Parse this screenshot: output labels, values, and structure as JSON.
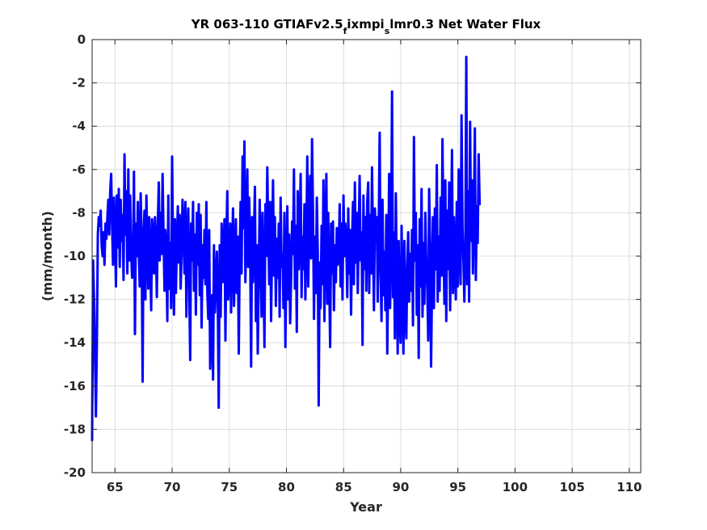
{
  "chart_data": {
    "type": "line",
    "title": {
      "prefix": "YR 063-110 GTIAFv2.5",
      "sub1": "f",
      "mid": "ixmpi",
      "sub2": "s",
      "suffix": "lmr0.3 Net Water Flux"
    },
    "xlabel": "Year",
    "ylabel": "(mm/month)",
    "xlim": [
      63,
      111
    ],
    "ylim": [
      -20,
      0
    ],
    "xticks": [
      65,
      70,
      75,
      80,
      85,
      90,
      95,
      100,
      105,
      110
    ],
    "yticks": [
      -20,
      -18,
      -16,
      -14,
      -12,
      -10,
      -8,
      -6,
      -4,
      -2,
      0
    ],
    "grid": true,
    "series": [
      {
        "color": "#0000ff",
        "x_start": 63.0,
        "x_step": 0.0833,
        "note_monthly": true,
        "y": [
          -18.5,
          -10.2,
          -12.0,
          -14.5,
          -17.4,
          -14.0,
          -9.0,
          -8.2,
          -8.6,
          -7.9,
          -9.5,
          -10.0,
          -8.9,
          -10.4,
          -8.5,
          -9.2,
          -8.2,
          -7.4,
          -9.0,
          -7.0,
          -6.2,
          -8.6,
          -10.4,
          -7.3,
          -8.8,
          -11.4,
          -7.2,
          -9.6,
          -6.9,
          -10.5,
          -7.4,
          -9.3,
          -8.1,
          -11.1,
          -5.3,
          -9.0,
          -7.0,
          -10.8,
          -6.0,
          -10.2,
          -7.2,
          -9.8,
          -11.0,
          -10.2,
          -6.1,
          -13.6,
          -8.5,
          -10.0,
          -7.5,
          -9.7,
          -11.4,
          -7.1,
          -9.5,
          -15.8,
          -9.0,
          -7.9,
          -12.0,
          -7.2,
          -9.4,
          -11.5,
          -8.2,
          -10.1,
          -12.5,
          -8.3,
          -9.0,
          -10.8,
          -8.2,
          -9.4,
          -11.9,
          -8.5,
          -6.6,
          -10.2,
          -8.0,
          -9.9,
          -6.2,
          -9.0,
          -11.6,
          -8.8,
          -10.0,
          -13.0,
          -7.2,
          -11.5,
          -9.4,
          -12.4,
          -5.4,
          -10.0,
          -12.7,
          -8.3,
          -11.7,
          -9.5,
          -7.7,
          -10.3,
          -8.1,
          -11.5,
          -9.8,
          -7.4,
          -8.8,
          -10.8,
          -7.5,
          -12.8,
          -9.0,
          -7.8,
          -11.4,
          -14.8,
          -8.5,
          -10.2,
          -7.5,
          -11.6,
          -9.0,
          -12.7,
          -8.0,
          -10.4,
          -7.6,
          -11.8,
          -8.1,
          -13.3,
          -9.5,
          -11.0,
          -8.8,
          -11.3,
          -7.5,
          -11.7,
          -12.9,
          -8.8,
          -15.2,
          -13.6,
          -11.8,
          -15.7,
          -9.5,
          -12.6,
          -11.3,
          -9.8,
          -11.9,
          -17.0,
          -9.5,
          -12.8,
          -8.5,
          -11.2,
          -10.0,
          -8.3,
          -13.9,
          -9.4,
          -7.0,
          -12.0,
          -10.4,
          -8.5,
          -12.6,
          -9.9,
          -7.8,
          -12.3,
          -10.4,
          -8.3,
          -11.7,
          -9.1,
          -14.5,
          -10.1,
          -7.5,
          -10.8,
          -5.4,
          -8.7,
          -4.7,
          -11.2,
          -9.0,
          -6.0,
          -10.5,
          -7.3,
          -9.7,
          -15.1,
          -8.2,
          -11.2,
          -9.0,
          -6.8,
          -13.0,
          -9.5,
          -14.5,
          -11.0,
          -7.4,
          -10.2,
          -12.8,
          -8.0,
          -10.7,
          -14.2,
          -7.6,
          -10.0,
          -5.9,
          -8.8,
          -11.3,
          -7.5,
          -13.0,
          -9.6,
          -6.5,
          -10.9,
          -8.2,
          -12.3,
          -9.2,
          -11.0,
          -8.5,
          -12.8,
          -7.3,
          -10.5,
          -9.9,
          -12.4,
          -8.0,
          -14.2,
          -10.5,
          -7.7,
          -12.0,
          -9.0,
          -13.1,
          -11.0,
          -8.4,
          -9.9,
          -6.0,
          -11.5,
          -8.6,
          -13.5,
          -7.0,
          -10.6,
          -8.9,
          -6.2,
          -11.9,
          -9.1,
          -10.6,
          -7.6,
          -12.0,
          -9.3,
          -5.4,
          -11.4,
          -8.4,
          -6.3,
          -10.1,
          -4.6,
          -8.0,
          -12.9,
          -9.1,
          -11.7,
          -7.3,
          -9.9,
          -16.9,
          -10.3,
          -12.4,
          -8.6,
          -11.3,
          -6.5,
          -13.0,
          -9.0,
          -6.2,
          -12.2,
          -8.0,
          -11.0,
          -14.2,
          -8.5,
          -10.8,
          -8.4,
          -12.5,
          -9.5,
          -11.2,
          -8.7,
          -10.4,
          -9.9,
          -7.6,
          -11.4,
          -8.5,
          -12.0,
          -7.2,
          -10.0,
          -8.5,
          -9.5,
          -11.9,
          -7.8,
          -10.8,
          -8.8,
          -12.7,
          -9.3,
          -7.5,
          -11.3,
          -6.6,
          -10.3,
          -8.0,
          -11.7,
          -9.1,
          -6.3,
          -10.2,
          -8.9,
          -14.1,
          -7.2,
          -10.6,
          -8.2,
          -11.6,
          -7.5,
          -6.6,
          -11.7,
          -8.1,
          -10.8,
          -5.9,
          -9.3,
          -12.5,
          -7.8,
          -9.3,
          -8.2,
          -12.1,
          -8.6,
          -4.3,
          -10.7,
          -13.0,
          -7.4,
          -11.8,
          -9.8,
          -12.5,
          -8.1,
          -14.5,
          -10.6,
          -6.2,
          -12.4,
          -9.5,
          -2.4,
          -11.9,
          -8.9,
          -13.8,
          -7.1,
          -11.3,
          -14.5,
          -9.3,
          -12.9,
          -14.0,
          -8.6,
          -11.5,
          -14.5,
          -9.3,
          -12.7,
          -13.8,
          -10.5,
          -8.9,
          -12.1,
          -9.9,
          -11.6,
          -8.8,
          -13.2,
          -4.5,
          -10.2,
          -8.0,
          -12.7,
          -9.5,
          -14.7,
          -8.3,
          -11.4,
          -6.9,
          -12.8,
          -9.4,
          -12.2,
          -8.0,
          -10.3,
          -11.5,
          -13.9,
          -6.9,
          -9.4,
          -15.1,
          -11.3,
          -8.2,
          -12.4,
          -7.8,
          -10.6,
          -5.8,
          -12.1,
          -9.1,
          -11.6,
          -7.3,
          -10.9,
          -4.6,
          -8.9,
          -12.2,
          -6.5,
          -13.0,
          -7.9,
          -10.6,
          -6.6,
          -12.5,
          -9.0,
          -5.1,
          -11.7,
          -8.2,
          -10.3,
          -12.0,
          -7.5,
          -11.4,
          -6.0,
          -9.3,
          -11.3,
          -3.5,
          -8.7,
          -10.3,
          -12.1,
          -9.8,
          -0.8,
          -11.3,
          -7.0,
          -12.1,
          -3.8,
          -9.3,
          -6.5,
          -10.8,
          -8.0,
          -4.1,
          -11.1,
          -7.7,
          -9.4,
          -5.3,
          -7.6
        ]
      }
    ]
  }
}
